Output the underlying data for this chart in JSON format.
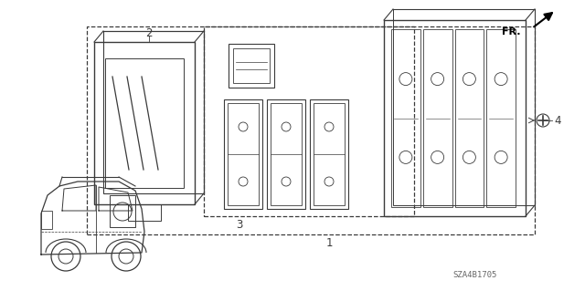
{
  "bg_color": "#ffffff",
  "line_color": "#3a3a3a",
  "fig_width": 6.4,
  "fig_height": 3.19,
  "dpi": 100,
  "diagram_code": "SZA4B1705"
}
